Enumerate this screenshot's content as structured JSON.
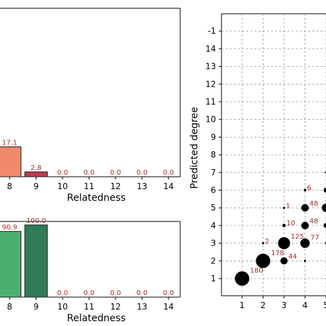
{
  "chart_data": [
    {
      "type": "bar",
      "xlabel": "Relatedness",
      "categories": [
        "8",
        "9",
        "10",
        "11",
        "12",
        "13",
        "14"
      ],
      "values": [
        17.1,
        2.8,
        0.0,
        0.0,
        0.0,
        0.0,
        0.0
      ],
      "value_labels": [
        "17.1",
        "2.8",
        "0.0",
        "0.0",
        "0.0",
        "0.0",
        "0.0"
      ],
      "colors": [
        "#f08a6a",
        "#c0394a"
      ],
      "ylim": [
        0,
        100
      ]
    },
    {
      "type": "bar",
      "xlabel": "Relatedness",
      "categories": [
        "8",
        "9",
        "10",
        "11",
        "12",
        "13",
        "14"
      ],
      "values": [
        90.9,
        100.0,
        0.0,
        0.0,
        0.0,
        0.0,
        0.0
      ],
      "value_labels": [
        "90.9",
        "100.0",
        "0.0",
        "0.0",
        "0.0",
        "0.0",
        "0.0"
      ],
      "colors": [
        "#4caf72",
        "#2e7d56"
      ],
      "ylim": [
        0,
        100
      ]
    },
    {
      "type": "scatter",
      "ylabel": "Predicted degree",
      "x_ticks": [
        "1",
        "2",
        "3",
        "4",
        "5"
      ],
      "y_ticks": [
        "1",
        "2",
        "3",
        "4",
        "5",
        "6",
        "7",
        "8",
        "9",
        "10",
        "11",
        "12",
        "13",
        "14",
        "-1"
      ],
      "grid": true,
      "points": [
        {
          "x": 1,
          "y": 1,
          "count": 180,
          "label": "180"
        },
        {
          "x": 2,
          "y": 2,
          "count": 178,
          "label": "178"
        },
        {
          "x": 2,
          "y": 3,
          "count": 2,
          "label": "2"
        },
        {
          "x": 3,
          "y": 3,
          "count": 125,
          "label": "125"
        },
        {
          "x": 3,
          "y": 2,
          "count": 44,
          "label": "44"
        },
        {
          "x": 3,
          "y": 4,
          "count": 10,
          "label": "10"
        },
        {
          "x": 3,
          "y": 5,
          "count": 1,
          "label": "1"
        },
        {
          "x": 4,
          "y": 3,
          "count": 77,
          "label": "77"
        },
        {
          "x": 4,
          "y": 4,
          "count": 48,
          "label": "48"
        },
        {
          "x": 4,
          "y": 5,
          "count": 48,
          "label": "48"
        },
        {
          "x": 4,
          "y": 6,
          "count": 6,
          "label": "6"
        },
        {
          "x": 4,
          "y": 2,
          "count": 1,
          "label": ""
        },
        {
          "x": 5,
          "y": 5,
          "count": 60,
          "label": ""
        },
        {
          "x": 5,
          "y": 6,
          "count": 20,
          "label": ""
        },
        {
          "x": 5,
          "y": 4,
          "count": 20,
          "label": ""
        },
        {
          "x": 5,
          "y": 3,
          "count": 1,
          "label": ""
        },
        {
          "x": 5,
          "y": 7,
          "count": 1,
          "label": ""
        }
      ]
    }
  ]
}
